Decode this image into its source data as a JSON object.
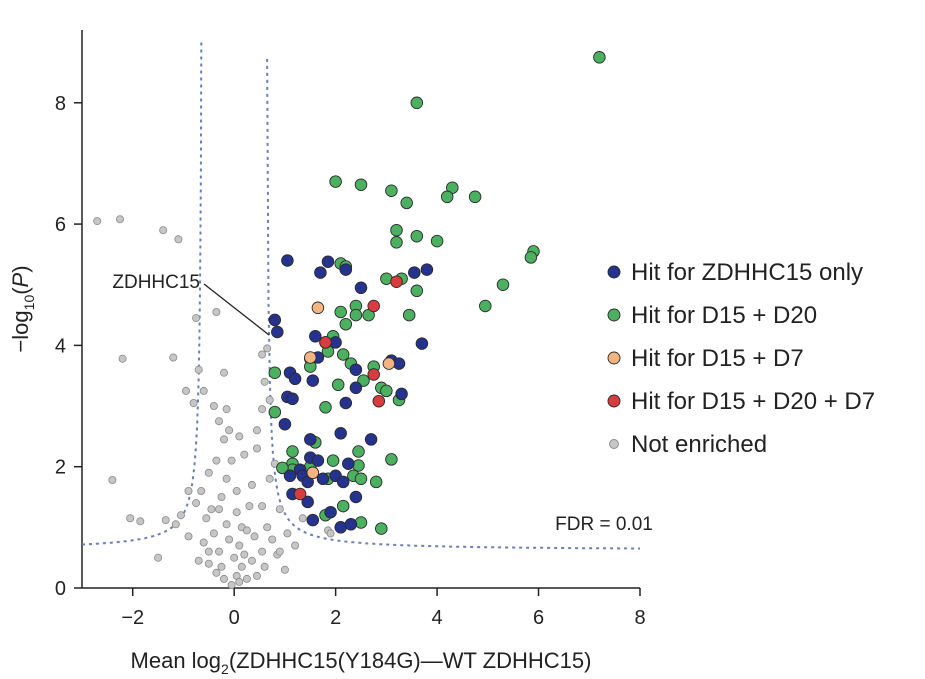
{
  "chart_data": {
    "type": "scatter",
    "xlabel_parts": [
      "Mean log",
      "2",
      "(ZDHHC15(Y184G)—WT ZDHHC15)"
    ],
    "ylabel_parts": [
      "−log",
      "10",
      "(",
      "P",
      ")"
    ],
    "xlim": [
      -3,
      8
    ],
    "ylim": [
      0,
      9.2
    ],
    "x_ticks": [
      -2,
      0,
      2,
      4,
      6,
      8
    ],
    "x_tick_labels": [
      "−2",
      "0",
      "2",
      "4",
      "6",
      "8"
    ],
    "y_ticks": [
      0,
      2,
      4,
      6,
      8
    ],
    "y_tick_labels": [
      "0",
      "2",
      "4",
      "6",
      "8"
    ],
    "grid": false,
    "legend_position": "right",
    "annotations": {
      "highlight_label": "ZDHHC15",
      "highlight_point": [
        0.75,
        4.12
      ],
      "fdr_label": "FDR = 0.01"
    },
    "fdr_curve": {
      "left_min": -3.0,
      "left_max": -0.62,
      "right_min": 0.62,
      "right_max": 8.0,
      "asymptote_x": 0.62,
      "baseline_y": 0.62,
      "scale": 0.23,
      "color": "#6a7fb5"
    },
    "series": [
      {
        "name": "Hit for ZDHHC15 only",
        "color": "#25338f",
        "points": [
          [
            1.05,
            5.4
          ],
          [
            1.85,
            5.38
          ],
          [
            1.7,
            5.2
          ],
          [
            2.2,
            5.25
          ],
          [
            2.5,
            4.95
          ],
          [
            3.55,
            5.2
          ],
          [
            3.8,
            5.25
          ],
          [
            0.8,
            4.42
          ],
          [
            0.85,
            4.22
          ],
          [
            1.6,
            4.15
          ],
          [
            2.0,
            4.05
          ],
          [
            3.7,
            4.03
          ],
          [
            3.1,
            3.75
          ],
          [
            3.25,
            3.7
          ],
          [
            2.4,
            3.6
          ],
          [
            1.65,
            3.8
          ],
          [
            1.1,
            3.55
          ],
          [
            1.2,
            3.45
          ],
          [
            1.55,
            3.42
          ],
          [
            2.4,
            3.3
          ],
          [
            3.3,
            3.2
          ],
          [
            1.05,
            3.15
          ],
          [
            1.15,
            3.12
          ],
          [
            2.2,
            3.05
          ],
          [
            1.0,
            2.7
          ],
          [
            1.5,
            2.45
          ],
          [
            2.1,
            2.55
          ],
          [
            2.7,
            2.45
          ],
          [
            1.5,
            2.15
          ],
          [
            1.65,
            2.1
          ],
          [
            1.3,
            1.95
          ],
          [
            2.25,
            2.05
          ],
          [
            1.1,
            1.85
          ],
          [
            1.35,
            1.85
          ],
          [
            1.45,
            1.75
          ],
          [
            1.55,
            1.9
          ],
          [
            1.75,
            1.8
          ],
          [
            2.0,
            1.85
          ],
          [
            2.15,
            1.75
          ],
          [
            1.15,
            1.55
          ],
          [
            1.45,
            1.42
          ],
          [
            2.4,
            1.5
          ],
          [
            1.55,
            1.12
          ],
          [
            1.9,
            1.25
          ],
          [
            2.1,
            1.0
          ],
          [
            2.3,
            1.05
          ]
        ]
      },
      {
        "name": "Hit for D15 + D20",
        "color": "#4bb060",
        "points": [
          [
            7.2,
            8.75
          ],
          [
            3.6,
            8.0
          ],
          [
            2.0,
            6.7
          ],
          [
            2.5,
            6.65
          ],
          [
            3.1,
            6.55
          ],
          [
            4.3,
            6.6
          ],
          [
            4.2,
            6.45
          ],
          [
            4.75,
            6.45
          ],
          [
            3.4,
            6.35
          ],
          [
            3.2,
            5.9
          ],
          [
            3.6,
            5.8
          ],
          [
            3.2,
            5.7
          ],
          [
            4.0,
            5.72
          ],
          [
            5.9,
            5.55
          ],
          [
            5.85,
            5.45
          ],
          [
            2.1,
            5.35
          ],
          [
            2.2,
            5.3
          ],
          [
            3.0,
            5.1
          ],
          [
            3.3,
            5.1
          ],
          [
            5.3,
            5.0
          ],
          [
            3.6,
            4.9
          ],
          [
            2.4,
            4.65
          ],
          [
            4.95,
            4.65
          ],
          [
            2.1,
            4.55
          ],
          [
            2.4,
            4.5
          ],
          [
            2.65,
            4.5
          ],
          [
            3.45,
            4.5
          ],
          [
            2.2,
            4.35
          ],
          [
            1.95,
            4.15
          ],
          [
            1.8,
            4.05
          ],
          [
            1.5,
            3.78
          ],
          [
            1.85,
            3.9
          ],
          [
            2.15,
            3.85
          ],
          [
            2.3,
            3.7
          ],
          [
            1.5,
            3.65
          ],
          [
            2.75,
            3.65
          ],
          [
            0.8,
            3.55
          ],
          [
            2.55,
            3.42
          ],
          [
            2.05,
            3.35
          ],
          [
            2.9,
            3.3
          ],
          [
            3.0,
            3.25
          ],
          [
            3.25,
            3.1
          ],
          [
            1.8,
            2.98
          ],
          [
            0.8,
            2.9
          ],
          [
            1.6,
            2.4
          ],
          [
            1.15,
            2.25
          ],
          [
            2.45,
            2.25
          ],
          [
            1.15,
            2.05
          ],
          [
            1.95,
            2.1
          ],
          [
            3.1,
            2.12
          ],
          [
            1.15,
            1.95
          ],
          [
            1.5,
            2.0
          ],
          [
            2.45,
            2.02
          ],
          [
            0.95,
            1.98
          ],
          [
            1.85,
            1.8
          ],
          [
            2.35,
            1.85
          ],
          [
            2.8,
            1.75
          ],
          [
            2.5,
            1.8
          ],
          [
            1.8,
            1.2
          ],
          [
            2.5,
            1.08
          ],
          [
            2.15,
            1.35
          ],
          [
            2.9,
            0.98
          ]
        ]
      },
      {
        "name": "Hit for D15 + D7",
        "color": "#f3b482",
        "points": [
          [
            1.65,
            4.62
          ],
          [
            1.5,
            3.8
          ],
          [
            3.05,
            3.7
          ],
          [
            1.55,
            1.9
          ]
        ]
      },
      {
        "name": "Hit for D15 + D20 + D7",
        "color": "#d93c3f",
        "points": [
          [
            3.2,
            5.05
          ],
          [
            2.75,
            4.65
          ],
          [
            1.8,
            4.05
          ],
          [
            2.75,
            3.52
          ],
          [
            2.85,
            3.08
          ],
          [
            1.3,
            1.55
          ]
        ]
      },
      {
        "name": "Not enriched",
        "color": "#c6c6c6",
        "points": [
          [
            -2.7,
            6.05
          ],
          [
            -2.25,
            6.08
          ],
          [
            -1.4,
            5.9
          ],
          [
            -1.1,
            5.75
          ],
          [
            -0.75,
            4.45
          ],
          [
            -0.35,
            4.55
          ],
          [
            -2.2,
            3.78
          ],
          [
            -1.2,
            3.8
          ],
          [
            -0.7,
            3.6
          ],
          [
            -0.2,
            3.55
          ],
          [
            -2.4,
            1.78
          ],
          [
            -2.05,
            1.15
          ],
          [
            -1.85,
            1.1
          ],
          [
            -1.5,
            0.5
          ],
          [
            -1.35,
            1.12
          ],
          [
            -1.15,
            1.05
          ],
          [
            -0.9,
            0.85
          ],
          [
            -0.75,
            1.4
          ],
          [
            -0.5,
            0.6
          ],
          [
            -0.45,
            1.3
          ],
          [
            -0.25,
            0.35
          ],
          [
            -0.2,
            2.45
          ],
          [
            -0.1,
            2.6
          ],
          [
            -0.3,
            2.75
          ],
          [
            0.1,
            2.5
          ],
          [
            0.2,
            2.2
          ],
          [
            0.35,
            1.7
          ],
          [
            0.45,
            2.3
          ],
          [
            0.55,
            2.95
          ],
          [
            0.6,
            3.4
          ],
          [
            0.7,
            3.1
          ],
          [
            0.55,
            3.85
          ],
          [
            0.65,
            3.95
          ],
          [
            -0.6,
            3.25
          ],
          [
            -0.8,
            3.05
          ],
          [
            -0.95,
            3.25
          ],
          [
            -0.4,
            3.0
          ],
          [
            -0.15,
            2.95
          ],
          [
            0.45,
            2.6
          ],
          [
            0.55,
            1.35
          ],
          [
            0.7,
            1.8
          ],
          [
            0.8,
            2.05
          ],
          [
            -0.35,
            2.1
          ],
          [
            -0.5,
            1.9
          ],
          [
            -0.65,
            1.6
          ],
          [
            -0.9,
            1.6
          ],
          [
            -1.05,
            1.2
          ],
          [
            -0.55,
            1.15
          ],
          [
            -0.3,
            1.3
          ],
          [
            0.15,
            1.0
          ],
          [
            0.3,
            1.35
          ],
          [
            0.4,
            0.85
          ],
          [
            0.55,
            0.6
          ],
          [
            0.65,
            1.0
          ],
          [
            0.85,
            0.55
          ],
          [
            0.9,
            1.3
          ],
          [
            1.05,
            0.9
          ],
          [
            1.2,
            0.7
          ],
          [
            1.35,
            1.15
          ],
          [
            1.85,
            0.95
          ],
          [
            1.9,
            0.9
          ],
          [
            -0.05,
            2.1
          ],
          [
            0.05,
            1.6
          ],
          [
            -0.15,
            1.8
          ],
          [
            -0.25,
            1.5
          ],
          [
            -0.4,
            0.9
          ],
          [
            -0.6,
            0.75
          ],
          [
            0.05,
            0.2
          ],
          [
            -0.05,
            0.05
          ],
          [
            0.1,
            0.1
          ],
          [
            0.25,
            0.15
          ],
          [
            -0.2,
            0.15
          ],
          [
            0.0,
            0.5
          ],
          [
            0.1,
            0.7
          ],
          [
            -0.1,
            0.8
          ],
          [
            0.2,
            0.55
          ],
          [
            -0.3,
            0.6
          ],
          [
            0.35,
            0.45
          ],
          [
            0.25,
            0.95
          ],
          [
            -0.15,
            1.05
          ],
          [
            0.05,
            1.25
          ],
          [
            0.15,
            0.35
          ],
          [
            -0.35,
            0.25
          ],
          [
            0.45,
            0.2
          ],
          [
            -0.5,
            0.4
          ],
          [
            0.6,
            0.35
          ],
          [
            0.75,
            0.8
          ],
          [
            -0.7,
            0.45
          ],
          [
            0.9,
            0.6
          ],
          [
            1.0,
            0.3
          ]
        ]
      }
    ]
  }
}
